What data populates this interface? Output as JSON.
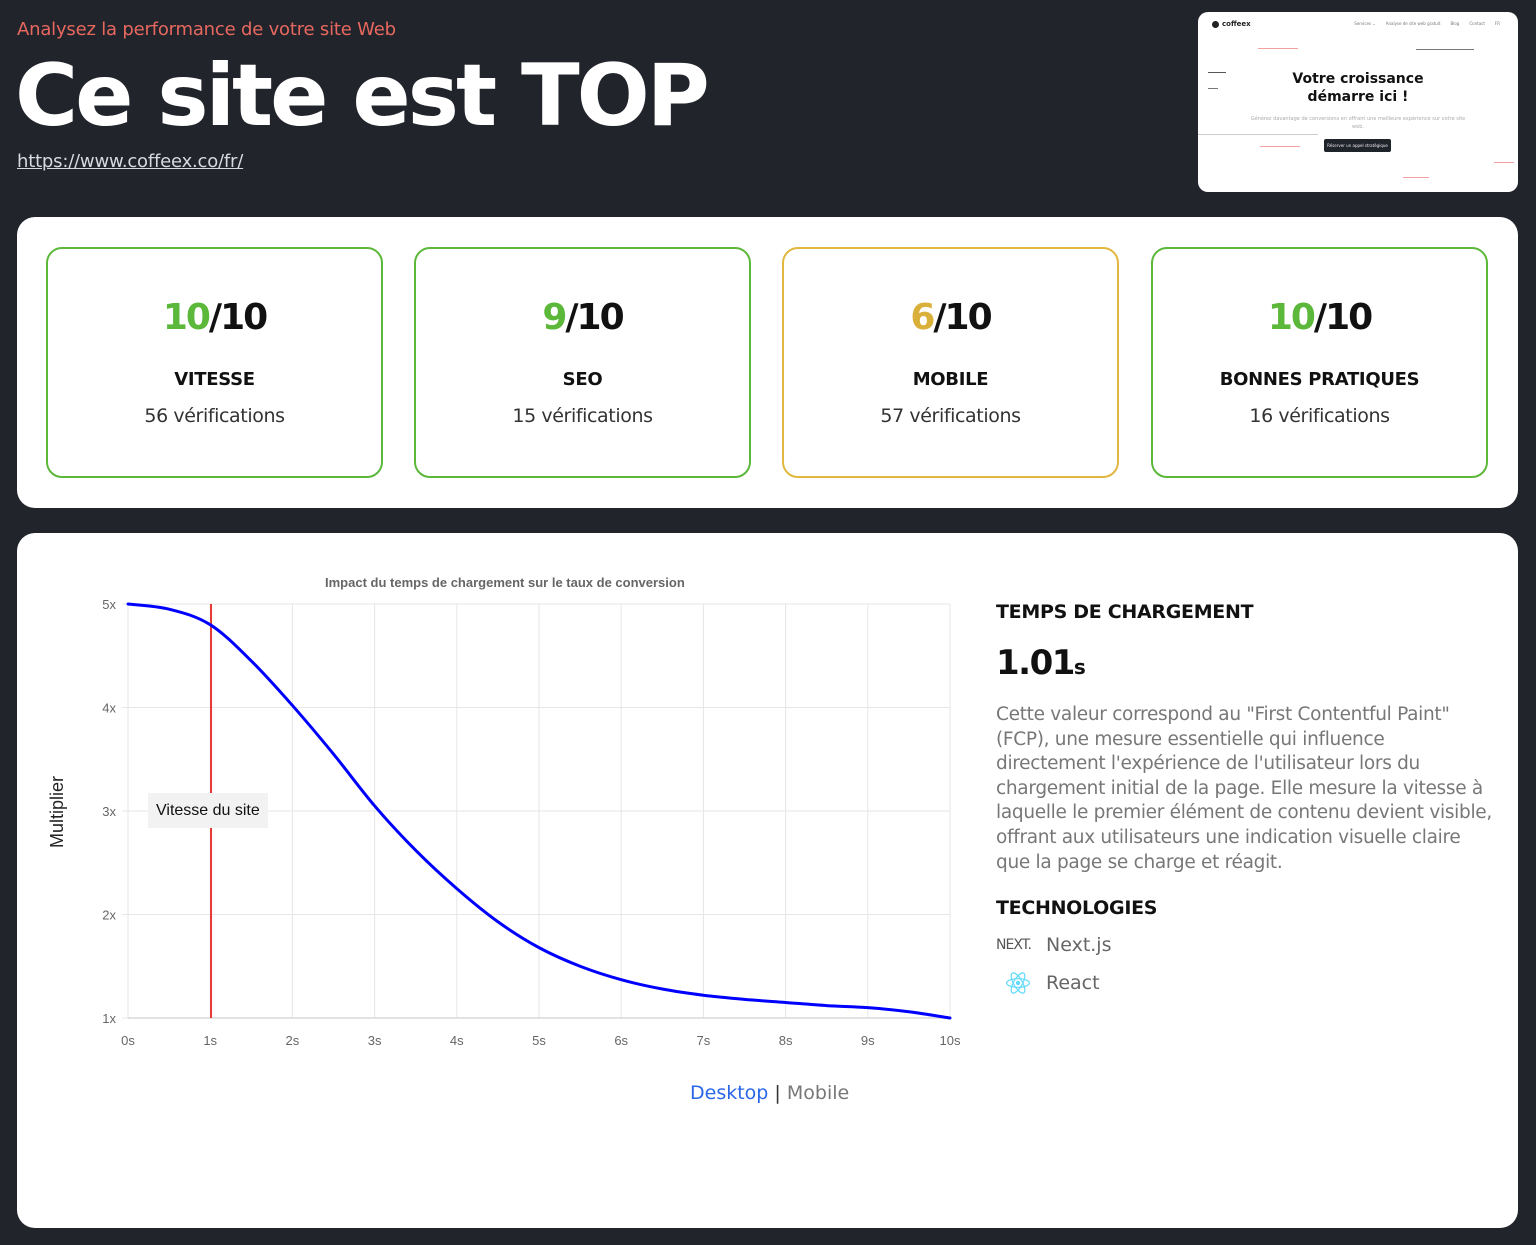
{
  "header": {
    "eyebrow": "Analysez la performance de votre site Web",
    "title": "Ce site est TOP",
    "url": "https://www.coffeex.co/fr/"
  },
  "thumbnail": {
    "logo": "coffeex",
    "nav": [
      "Services ⌄",
      "Analyse de site web gratuit",
      "Blog",
      "Contact",
      "FR"
    ],
    "hero_line1": "Votre croissance",
    "hero_line2": "démarre ici !",
    "subtitle": "Générez davantage de conversions en offrant une meilleure expérience sur votre site web.",
    "cta": "Réserver un appel stratégique"
  },
  "scores": [
    {
      "value": "10",
      "max": "/10",
      "label": "VITESSE",
      "checks": "56 vérifications",
      "status": "good"
    },
    {
      "value": "9",
      "max": "/10",
      "label": "SEO",
      "checks": "15 vérifications",
      "status": "good"
    },
    {
      "value": "6",
      "max": "/10",
      "label": "MOBILE",
      "checks": "57 vérifications",
      "status": "warn"
    },
    {
      "value": "10",
      "max": "/10",
      "label": "BONNES PRATIQUES",
      "checks": "16 vérifications",
      "status": "good"
    }
  ],
  "colors": {
    "background": "#21242b",
    "good": "#5cb83a",
    "warn": "#e2b740",
    "accent_red": "#e8685f",
    "curve": "#0000ff",
    "marker": "#e53935",
    "link_active": "#2a67e8"
  },
  "chart": {
    "title": "Impact du temps de chargement sur le taux de conversion",
    "ylabel": "Multiplier",
    "annotation": "Vitesse du site",
    "toggle": {
      "active": "Desktop",
      "separator": "|",
      "inactive": "Mobile"
    }
  },
  "chart_data": {
    "type": "line",
    "title": "Impact du temps de chargement sur le taux de conversion",
    "xlabel": "",
    "ylabel": "Multiplier",
    "x_ticks": [
      "0s",
      "1s",
      "2s",
      "3s",
      "4s",
      "5s",
      "6s",
      "7s",
      "8s",
      "9s",
      "10s"
    ],
    "y_ticks": [
      "1x",
      "2x",
      "3x",
      "4x",
      "5x"
    ],
    "xlim": [
      0,
      10
    ],
    "ylim": [
      1,
      5
    ],
    "grid": true,
    "legend": null,
    "series": [
      {
        "name": "Multiplier",
        "color": "#0000ff",
        "x": [
          0,
          0.5,
          1,
          1.5,
          2,
          2.5,
          3,
          3.5,
          4,
          4.5,
          5,
          5.5,
          6,
          6.5,
          7,
          7.5,
          8,
          8.5,
          9,
          9.5,
          10
        ],
        "y": [
          5.0,
          4.95,
          4.8,
          4.45,
          4.02,
          3.55,
          3.05,
          2.62,
          2.25,
          1.93,
          1.68,
          1.5,
          1.37,
          1.28,
          1.22,
          1.18,
          1.15,
          1.12,
          1.1,
          1.06,
          1.0
        ]
      }
    ],
    "annotations": [
      {
        "type": "vline",
        "x": 1.01,
        "color": "#e53935",
        "label": "Vitesse du site"
      }
    ]
  },
  "loading": {
    "heading": "TEMPS DE CHARGEMENT",
    "value": "1.01",
    "unit": "s",
    "description": "Cette valeur correspond au \"First Contentful Paint\" (FCP), une mesure essentielle qui influence directement l'expérience de l'utilisateur lors du chargement initial de la page. Elle mesure la vitesse à laquelle le premier élément de contenu devient visible, offrant aux utilisateurs une indication visuelle claire que la page se charge et réagit."
  },
  "technologies": {
    "heading": "TECHNOLOGIES",
    "items": [
      {
        "icon": "nextjs-icon",
        "icon_text": "NEXT.",
        "label": "Next.js"
      },
      {
        "icon": "react-icon",
        "label": "React"
      }
    ]
  }
}
